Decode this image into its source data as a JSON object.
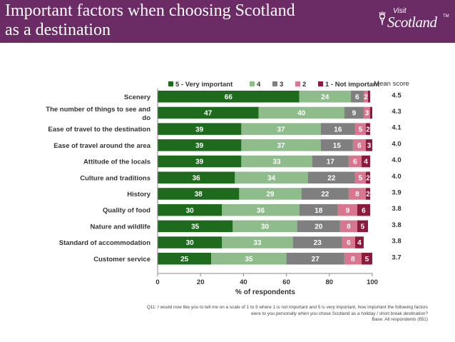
{
  "slide": {
    "title_line1": "Important factors when choosing Scotland",
    "title_line2": "as a destination",
    "logo_top": "Visit",
    "logo_main": "Scotland",
    "logo_tm": "TM",
    "header_color": "#6b2c66"
  },
  "chart_data": {
    "type": "bar",
    "orientation": "horizontal",
    "stacked": true,
    "xlabel": "% of respondents",
    "xlim": [
      0,
      100
    ],
    "xticks": [
      "0",
      "20",
      "40",
      "60",
      "80",
      "100"
    ],
    "legend_position": "top",
    "mean_title": "Mean score",
    "categories": [
      {
        "label_lines": [
          "Scenery"
        ],
        "mean": "4.5"
      },
      {
        "label_lines": [
          "The number of things to see and",
          "do"
        ],
        "mean": "4.3"
      },
      {
        "label_lines": [
          "Ease of travel to the destination"
        ],
        "mean": "4.1"
      },
      {
        "label_lines": [
          "Ease of travel around the area"
        ],
        "mean": "4.0"
      },
      {
        "label_lines": [
          "Attitude of the locals"
        ],
        "mean": "4.0"
      },
      {
        "label_lines": [
          "Culture and traditions"
        ],
        "mean": "4.0"
      },
      {
        "label_lines": [
          "History"
        ],
        "mean": "3.9"
      },
      {
        "label_lines": [
          "Quality of food"
        ],
        "mean": "3.8"
      },
      {
        "label_lines": [
          "Nature and wildlife"
        ],
        "mean": "3.8"
      },
      {
        "label_lines": [
          "Standard of accommodation"
        ],
        "mean": "3.8"
      },
      {
        "label_lines": [
          "Customer service"
        ],
        "mean": "3.7"
      }
    ],
    "series": [
      {
        "name": "5 - Very important",
        "color": "#1e6b1e",
        "label_color": "#ffffff",
        "values": [
          66,
          47,
          39,
          39,
          39,
          36,
          38,
          30,
          35,
          30,
          25
        ]
      },
      {
        "name": "4",
        "color": "#8fbc8b",
        "label_color": "#ffffff",
        "values": [
          24,
          40,
          37,
          37,
          33,
          34,
          29,
          36,
          30,
          33,
          35
        ]
      },
      {
        "name": "3",
        "color": "#7f7f7f",
        "label_color": "#ffffff",
        "values": [
          6,
          9,
          16,
          15,
          17,
          22,
          22,
          18,
          20,
          23,
          27
        ]
      },
      {
        "name": "2",
        "color": "#d9768f",
        "label_color": "#ffffff",
        "values": [
          2,
          3,
          5,
          6,
          6,
          5,
          8,
          9,
          8,
          6,
          8
        ]
      },
      {
        "name": "1 - Not important",
        "color": "#8b1a3c",
        "label_color": "#ffffff",
        "values": [
          1,
          1,
          2,
          3,
          4,
          2,
          2,
          6,
          5,
          4,
          5
        ]
      }
    ],
    "shown_labels": [
      [
        "66",
        "47",
        "39",
        "39",
        "39",
        "36",
        "38",
        "30",
        "35",
        "30",
        "25"
      ],
      [
        "24",
        "40",
        "37",
        "37",
        "33",
        "34",
        "29",
        "36",
        "30",
        "33",
        "35"
      ],
      [
        "6",
        "9",
        "16",
        "15",
        "17",
        "22",
        "22",
        "18",
        "20",
        "23",
        "27"
      ],
      [
        "2",
        "3",
        "5",
        "6",
        "6",
        "5",
        "8",
        "9",
        "8",
        "6",
        "8"
      ],
      [
        "",
        "",
        "2",
        "3",
        "4",
        "2",
        "2",
        "6",
        "5",
        "4",
        "5"
      ]
    ]
  },
  "footnote": {
    "q_line1": "Q11: I would now like you to tell me on a scale of 1 to 5 where 1 is not important and 5 is very important, how important the following factors",
    "q_line2": "were to you personally when you chose Scotland as a holiday / short break destination?",
    "base": "Base: All respondents (651)"
  }
}
